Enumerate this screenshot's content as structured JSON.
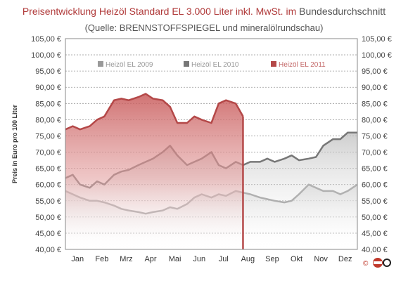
{
  "chart_data": {
    "type": "area",
    "title_main": "Preisentwicklung Heizöl Standard EL 3.000 Liter inkl. MwSt. im",
    "title_tail": "Bundesdurchschnitt",
    "subtitle": "(Quelle: BRENNSTOFFSPIEGEL  und mineralölrundschau)",
    "ylabel": "Preis in Euro pro 100 Liter",
    "ylim": [
      40,
      105
    ],
    "ytick_values": [
      40,
      45,
      50,
      55,
      60,
      65,
      70,
      75,
      80,
      85,
      90,
      95,
      100,
      105
    ],
    "yticks": [
      "40,00 €",
      "45,00 €",
      "50,00 €",
      "55,00 €",
      "60,00 €",
      "65,00 €",
      "70,00 €",
      "75,00 €",
      "80,00 €",
      "85,00 €",
      "90,00 €",
      "95,00 €",
      "100,00 €",
      "105,00 €"
    ],
    "months": [
      "Jan",
      "Feb",
      "Mrz",
      "Apr",
      "Mai",
      "Jun",
      "Jul",
      "Aug",
      "Sep",
      "Okt",
      "Nov",
      "Dez"
    ],
    "grid": true,
    "legend_position": "top",
    "series": [
      {
        "name": "Heizöl EL 2009",
        "color": "#9a9a9a",
        "x": [
          0,
          0.3,
          0.6,
          1,
          1.3,
          1.6,
          2,
          2.3,
          2.6,
          3,
          3.3,
          3.6,
          4,
          4.3,
          4.6,
          5,
          5.3,
          5.6,
          6,
          6.3,
          6.6,
          7,
          7.3,
          7.6,
          8,
          8.3,
          8.6,
          9,
          9.3,
          9.6,
          10,
          10.3,
          10.6,
          11,
          11.3,
          11.6,
          12
        ],
        "values": [
          58,
          57,
          56,
          55,
          55,
          54.5,
          53.5,
          52.5,
          52,
          51.5,
          51,
          51.5,
          52,
          53,
          52.5,
          54,
          56,
          57,
          56,
          57,
          56.5,
          58,
          57.5,
          57,
          56,
          55.5,
          55,
          54.5,
          55,
          57,
          60,
          59,
          58,
          58,
          57,
          58,
          60
        ]
      },
      {
        "name": "Heizöl EL 2010",
        "color": "#777777",
        "x": [
          0,
          0.3,
          0.6,
          1,
          1.3,
          1.6,
          2,
          2.3,
          2.6,
          3,
          3.3,
          3.6,
          4,
          4.3,
          4.6,
          5,
          5.3,
          5.6,
          6,
          6.3,
          6.6,
          7,
          7.3,
          7.6,
          8,
          8.3,
          8.6,
          9,
          9.3,
          9.6,
          10,
          10.3,
          10.6,
          11,
          11.3,
          11.6,
          12
        ],
        "values": [
          62,
          63,
          60,
          59,
          61,
          60,
          63,
          64,
          64.5,
          66,
          67,
          68,
          70,
          72,
          69,
          66,
          67,
          68,
          70,
          66,
          65,
          67,
          66,
          67,
          67,
          68,
          67,
          68,
          69,
          67.5,
          68,
          68.5,
          72,
          74,
          74,
          76,
          76
        ]
      },
      {
        "name": "Heizöl EL 2011",
        "color": "#b44848",
        "x": [
          0,
          0.3,
          0.6,
          1,
          1.3,
          1.6,
          2,
          2.3,
          2.6,
          3,
          3.3,
          3.6,
          4,
          4.3,
          4.6,
          5,
          5.3,
          5.6,
          6,
          6.3,
          6.6,
          7,
          7.3
        ],
        "values": [
          77,
          78,
          77,
          78,
          80,
          81,
          86,
          86.5,
          86,
          87,
          88,
          86.5,
          86,
          84,
          79,
          79,
          81,
          80,
          79,
          85,
          86,
          85,
          81
        ]
      }
    ]
  }
}
